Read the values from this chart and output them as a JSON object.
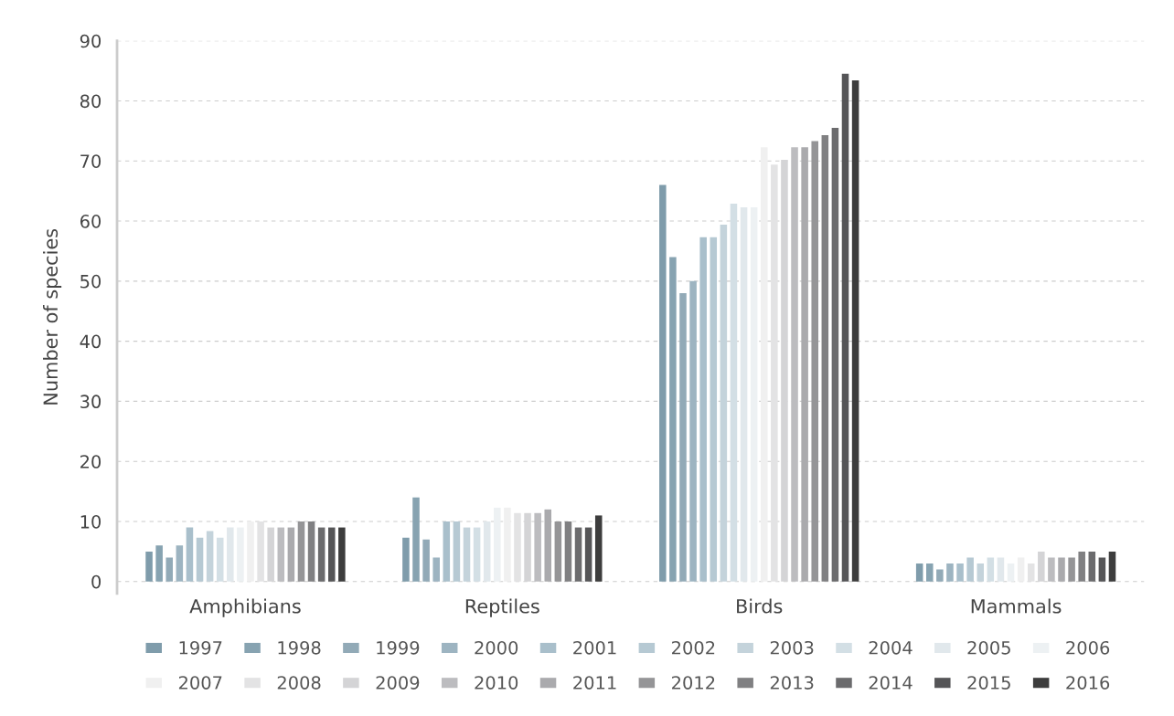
{
  "chart_data": {
    "type": "bar",
    "ylabel": "Number of species",
    "categories": [
      "Amphibians",
      "Reptiles",
      "Birds",
      "Mammals"
    ],
    "ylim": [
      -2,
      90
    ],
    "yticks": [
      0,
      10,
      20,
      30,
      40,
      50,
      60,
      70,
      80,
      90
    ],
    "grid": "y",
    "legend": "bottom",
    "series": [
      {
        "name": "1997",
        "color": "#7f9cab",
        "values": [
          5,
          7.3,
          66,
          3
        ]
      },
      {
        "name": "1998",
        "color": "#87a3b1",
        "values": [
          6,
          14,
          54,
          3
        ]
      },
      {
        "name": "1999",
        "color": "#92aab7",
        "values": [
          4,
          7,
          48,
          2
        ]
      },
      {
        "name": "2000",
        "color": "#9db4c1",
        "values": [
          6,
          4,
          50,
          3
        ]
      },
      {
        "name": "2001",
        "color": "#a9bfcb",
        "values": [
          9,
          10,
          57.3,
          3
        ]
      },
      {
        "name": "2002",
        "color": "#b6c9d3",
        "values": [
          7.3,
          10,
          57.3,
          4
        ]
      },
      {
        "name": "2003",
        "color": "#c4d3db",
        "values": [
          8.4,
          9,
          59.4,
          3
        ]
      },
      {
        "name": "2004",
        "color": "#d3dfe5",
        "values": [
          7.3,
          9,
          62.9,
          4
        ]
      },
      {
        "name": "2005",
        "color": "#e1e8ec",
        "values": [
          9,
          10,
          62.3,
          4
        ]
      },
      {
        "name": "2006",
        "color": "#edf1f3",
        "values": [
          9,
          12.3,
          62.3,
          3
        ]
      },
      {
        "name": "2007",
        "color": "#f0f0f0",
        "values": [
          10,
          12.3,
          72.3,
          4
        ]
      },
      {
        "name": "2008",
        "color": "#e3e3e4",
        "values": [
          10,
          11.4,
          69.4,
          3
        ]
      },
      {
        "name": "2009",
        "color": "#d4d4d6",
        "values": [
          9,
          11.4,
          70.2,
          5
        ]
      },
      {
        "name": "2010",
        "color": "#bcbcbf",
        "values": [
          9,
          11.4,
          72.3,
          4
        ]
      },
      {
        "name": "2011",
        "color": "#aaaaad",
        "values": [
          9,
          12,
          72.3,
          4
        ]
      },
      {
        "name": "2012",
        "color": "#959597",
        "values": [
          10,
          10,
          73.3,
          4
        ]
      },
      {
        "name": "2013",
        "color": "#808082",
        "values": [
          10,
          10,
          74.3,
          5
        ]
      },
      {
        "name": "2014",
        "color": "#6b6b6d",
        "values": [
          9,
          9,
          75.5,
          5
        ]
      },
      {
        "name": "2015",
        "color": "#555557",
        "values": [
          9,
          9,
          84.5,
          4
        ]
      },
      {
        "name": "2016",
        "color": "#3d3d3d",
        "values": [
          9,
          11,
          83.4,
          5
        ]
      }
    ]
  }
}
